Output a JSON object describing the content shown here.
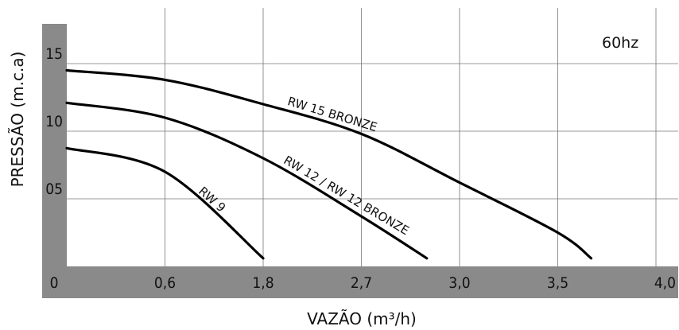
{
  "chart_data": {
    "type": "line",
    "xlabel": "VAZÃO (m³/h)",
    "ylabel": "PRESSÃO (m.c.a)",
    "annotation": "60hz",
    "x_ticks": [
      "0",
      "0,6",
      "1,8",
      "2,7",
      "3,0",
      "3,5",
      "4,0"
    ],
    "y_ticks": [
      "05",
      "10",
      "15"
    ],
    "ylim": [
      0,
      19.2
    ],
    "grid": true,
    "series": [
      {
        "name": "RW 9",
        "points": [
          [
            0,
            8.75
          ],
          [
            0.6,
            7.0
          ],
          [
            1.8,
            0.6
          ]
        ]
      },
      {
        "name": "RW 12 / RW 12 BRONZE",
        "points": [
          [
            0,
            12.1
          ],
          [
            0.6,
            11.0
          ],
          [
            1.8,
            8.0
          ],
          [
            2.7,
            3.7
          ],
          [
            2.9,
            0.6
          ]
        ]
      },
      {
        "name": "RW 15 BRONZE",
        "points": [
          [
            0,
            14.5
          ],
          [
            0.6,
            13.8
          ],
          [
            1.8,
            12.0
          ],
          [
            2.7,
            9.8
          ],
          [
            3.0,
            6.2
          ],
          [
            3.5,
            2.5
          ],
          [
            3.67,
            0.6
          ]
        ]
      }
    ]
  }
}
